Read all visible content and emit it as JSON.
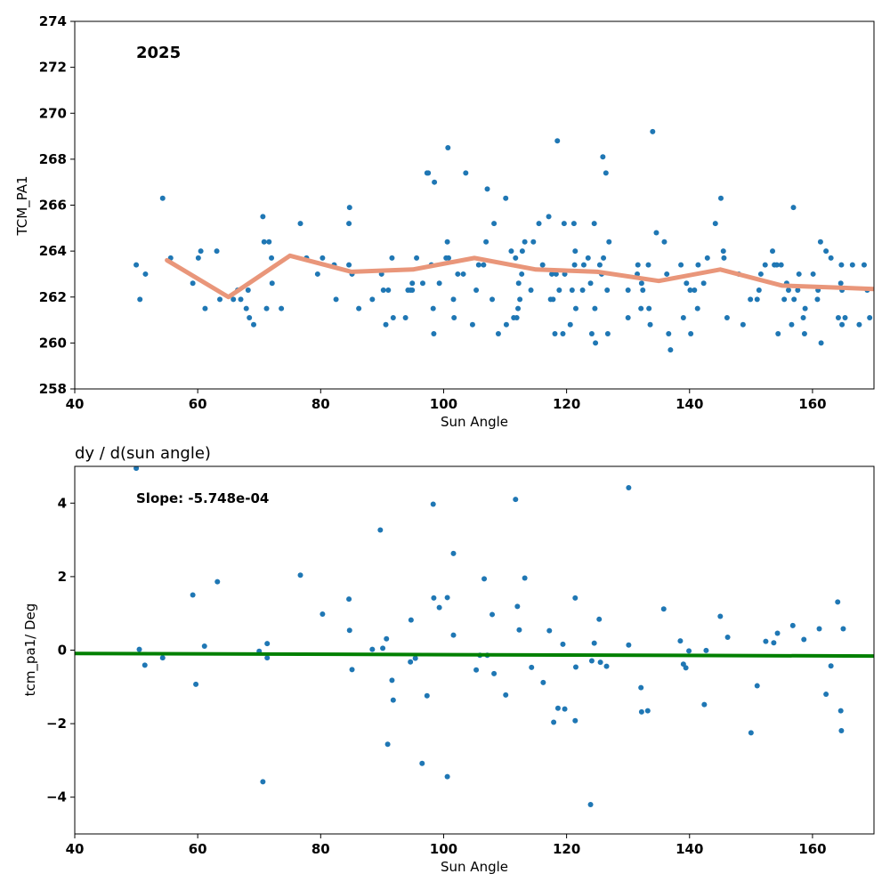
{
  "chart_data": [
    {
      "type": "scatter",
      "title": "",
      "annotation": "2025",
      "xlabel": "Sun Angle",
      "ylabel": "TCM_PA1",
      "xlim": [
        40,
        170
      ],
      "ylim": [
        258,
        274
      ],
      "xticks": [
        40,
        60,
        80,
        100,
        120,
        140,
        160
      ],
      "yticks": [
        258,
        260,
        262,
        264,
        266,
        268,
        270,
        272,
        274
      ],
      "grid": false,
      "colors": {
        "points": "#1f77b4",
        "trend": "#e9967a"
      },
      "points": [
        [
          50.0,
          263.4
        ],
        [
          50.6,
          261.9
        ],
        [
          51.5,
          263.0
        ],
        [
          54.3,
          266.3
        ],
        [
          55.6,
          263.7
        ],
        [
          59.2,
          262.6
        ],
        [
          60.1,
          263.7
        ],
        [
          60.5,
          264.0
        ],
        [
          61.2,
          261.5
        ],
        [
          63.1,
          264.0
        ],
        [
          63.6,
          261.9
        ],
        [
          65.8,
          261.9
        ],
        [
          66.5,
          262.3
        ],
        [
          67.0,
          261.9
        ],
        [
          67.9,
          261.5
        ],
        [
          68.2,
          262.3
        ],
        [
          68.4,
          261.1
        ],
        [
          69.1,
          260.8
        ],
        [
          70.6,
          265.5
        ],
        [
          70.8,
          264.4
        ],
        [
          71.2,
          261.5
        ],
        [
          71.6,
          264.4
        ],
        [
          72.0,
          263.7
        ],
        [
          72.1,
          262.6
        ],
        [
          73.6,
          261.5
        ],
        [
          76.7,
          265.2
        ],
        [
          77.7,
          263.7
        ],
        [
          79.5,
          263.0
        ],
        [
          80.3,
          263.7
        ],
        [
          82.2,
          263.4
        ],
        [
          82.5,
          261.9
        ],
        [
          84.6,
          263.4
        ],
        [
          84.6,
          265.2
        ],
        [
          84.7,
          265.9
        ],
        [
          85.1,
          263.0
        ],
        [
          86.2,
          261.5
        ],
        [
          88.4,
          261.9
        ],
        [
          89.9,
          263.0
        ],
        [
          90.2,
          262.3
        ],
        [
          90.6,
          260.8
        ],
        [
          91.0,
          262.3
        ],
        [
          91.6,
          263.7
        ],
        [
          91.8,
          261.1
        ],
        [
          93.8,
          261.1
        ],
        [
          94.2,
          262.3
        ],
        [
          94.6,
          262.3
        ],
        [
          94.9,
          262.6
        ],
        [
          94.9,
          262.3
        ],
        [
          95.6,
          263.7
        ],
        [
          96.6,
          262.6
        ],
        [
          97.3,
          267.4
        ],
        [
          97.5,
          267.4
        ],
        [
          98.0,
          263.4
        ],
        [
          98.3,
          261.5
        ],
        [
          98.4,
          260.4
        ],
        [
          98.5,
          267.0
        ],
        [
          99.3,
          262.6
        ],
        [
          100.4,
          263.7
        ],
        [
          100.6,
          264.4
        ],
        [
          100.7,
          268.5
        ],
        [
          100.8,
          263.7
        ],
        [
          101.6,
          261.9
        ],
        [
          101.7,
          261.1
        ],
        [
          102.3,
          263.0
        ],
        [
          103.2,
          263.0
        ],
        [
          103.6,
          267.4
        ],
        [
          104.7,
          260.8
        ],
        [
          105.3,
          262.3
        ],
        [
          105.7,
          263.4
        ],
        [
          106.5,
          263.4
        ],
        [
          106.9,
          264.4
        ],
        [
          107.1,
          266.7
        ],
        [
          107.9,
          261.9
        ],
        [
          108.2,
          265.2
        ],
        [
          108.9,
          260.4
        ],
        [
          110.1,
          266.3
        ],
        [
          110.2,
          260.8
        ],
        [
          111.0,
          264.0
        ],
        [
          111.4,
          261.1
        ],
        [
          111.7,
          263.7
        ],
        [
          111.9,
          261.1
        ],
        [
          112.1,
          261.5
        ],
        [
          112.2,
          262.6
        ],
        [
          112.4,
          261.9
        ],
        [
          112.7,
          263.0
        ],
        [
          112.8,
          264.0
        ],
        [
          113.2,
          264.4
        ],
        [
          114.2,
          262.3
        ],
        [
          114.6,
          264.4
        ],
        [
          115.5,
          265.2
        ],
        [
          116.1,
          263.4
        ],
        [
          117.1,
          265.5
        ],
        [
          117.4,
          261.9
        ],
        [
          117.6,
          263.0
        ],
        [
          117.8,
          261.9
        ],
        [
          118.1,
          260.4
        ],
        [
          118.3,
          263.0
        ],
        [
          118.5,
          268.8
        ],
        [
          118.8,
          262.3
        ],
        [
          119.4,
          260.4
        ],
        [
          119.6,
          265.2
        ],
        [
          119.7,
          263.0
        ],
        [
          120.6,
          260.8
        ],
        [
          120.9,
          262.3
        ],
        [
          121.2,
          265.2
        ],
        [
          121.3,
          263.4
        ],
        [
          121.4,
          264.0
        ],
        [
          121.5,
          261.5
        ],
        [
          122.6,
          262.3
        ],
        [
          122.8,
          263.4
        ],
        [
          123.5,
          263.7
        ],
        [
          123.9,
          262.6
        ],
        [
          124.1,
          260.4
        ],
        [
          124.5,
          265.2
        ],
        [
          124.6,
          261.5
        ],
        [
          124.7,
          260.0
        ],
        [
          125.4,
          263.4
        ],
        [
          125.7,
          263.0
        ],
        [
          125.9,
          268.1
        ],
        [
          126.0,
          263.7
        ],
        [
          126.4,
          267.4
        ],
        [
          126.6,
          262.3
        ],
        [
          126.7,
          260.4
        ],
        [
          126.9,
          264.4
        ],
        [
          130.0,
          262.3
        ],
        [
          130.0,
          261.1
        ],
        [
          131.5,
          263.0
        ],
        [
          131.6,
          263.4
        ],
        [
          132.1,
          261.5
        ],
        [
          132.2,
          262.6
        ],
        [
          132.4,
          262.3
        ],
        [
          133.3,
          263.4
        ],
        [
          133.4,
          261.5
        ],
        [
          133.6,
          260.8
        ],
        [
          134.0,
          269.2
        ],
        [
          134.6,
          264.8
        ],
        [
          135.9,
          264.4
        ],
        [
          136.3,
          263.0
        ],
        [
          136.6,
          260.4
        ],
        [
          136.9,
          259.7
        ],
        [
          138.6,
          263.4
        ],
        [
          139.0,
          261.1
        ],
        [
          139.5,
          262.6
        ],
        [
          140.1,
          262.3
        ],
        [
          140.2,
          260.4
        ],
        [
          140.8,
          262.3
        ],
        [
          141.3,
          261.5
        ],
        [
          141.4,
          263.4
        ],
        [
          142.3,
          262.6
        ],
        [
          142.9,
          263.7
        ],
        [
          144.2,
          265.2
        ],
        [
          145.1,
          266.3
        ],
        [
          145.5,
          264.0
        ],
        [
          145.6,
          263.7
        ],
        [
          146.1,
          261.1
        ],
        [
          148.0,
          263.0
        ],
        [
          148.7,
          260.8
        ],
        [
          149.9,
          261.9
        ],
        [
          151.0,
          261.9
        ],
        [
          151.3,
          262.3
        ],
        [
          151.6,
          263.0
        ],
        [
          152.3,
          263.4
        ],
        [
          153.5,
          264.0
        ],
        [
          153.8,
          263.4
        ],
        [
          154.2,
          263.4
        ],
        [
          154.4,
          260.4
        ],
        [
          154.9,
          263.4
        ],
        [
          155.4,
          261.9
        ],
        [
          155.8,
          262.6
        ],
        [
          156.1,
          262.3
        ],
        [
          156.6,
          260.8
        ],
        [
          156.9,
          265.9
        ],
        [
          157.0,
          261.9
        ],
        [
          157.6,
          262.3
        ],
        [
          157.8,
          263.0
        ],
        [
          158.5,
          261.1
        ],
        [
          158.7,
          260.4
        ],
        [
          158.8,
          261.5
        ],
        [
          160.1,
          263.0
        ],
        [
          160.8,
          261.9
        ],
        [
          160.9,
          262.3
        ],
        [
          161.3,
          264.4
        ],
        [
          161.4,
          260.0
        ],
        [
          162.2,
          264.0
        ],
        [
          163.0,
          263.7
        ],
        [
          164.2,
          261.1
        ],
        [
          164.6,
          262.6
        ],
        [
          164.7,
          263.4
        ],
        [
          164.8,
          260.8
        ],
        [
          164.8,
          262.3
        ],
        [
          165.3,
          261.1
        ],
        [
          166.5,
          263.4
        ],
        [
          167.6,
          260.8
        ],
        [
          168.4,
          263.4
        ],
        [
          168.9,
          262.3
        ],
        [
          169.3,
          261.1
        ]
      ],
      "trend_line": {
        "x": [
          55.0,
          65.0,
          75.0,
          85.0,
          95.0,
          105.0,
          115.0,
          125.0,
          135.0,
          145.0,
          155.0,
          165.0,
          175.0
        ],
        "y": [
          263.6,
          262.0,
          263.8,
          263.1,
          263.2,
          263.7,
          263.2,
          263.1,
          262.7,
          263.2,
          262.5,
          262.4,
          262.3
        ]
      }
    },
    {
      "type": "scatter",
      "title": "dy / d(sun angle)",
      "annotation": "Slope: -5.748e-04",
      "xlabel": "Sun Angle",
      "ylabel": "tcm_pa1/ Deg",
      "xlim": [
        40,
        170
      ],
      "ylim": [
        -5,
        5
      ],
      "xticks": [
        40,
        60,
        80,
        100,
        120,
        140,
        160
      ],
      "yticks": [
        -4,
        -2,
        0,
        2,
        4
      ],
      "ytick_labels": [
        "−4",
        "−2",
        "0",
        "2",
        "4"
      ],
      "grid": false,
      "colors": {
        "points": "#1f77b4",
        "fit": "#008000"
      },
      "points": [
        [
          50.0,
          4.95
        ],
        [
          50.5,
          0.02
        ],
        [
          51.4,
          -0.41
        ],
        [
          54.3,
          -0.21
        ],
        [
          59.2,
          1.5
        ],
        [
          59.7,
          -0.93
        ],
        [
          61.1,
          0.11
        ],
        [
          63.2,
          1.86
        ],
        [
          70.0,
          -0.03
        ],
        [
          70.6,
          -3.58
        ],
        [
          71.3,
          0.18
        ],
        [
          71.3,
          -0.21
        ],
        [
          76.7,
          2.04
        ],
        [
          80.3,
          0.98
        ],
        [
          84.6,
          1.39
        ],
        [
          84.7,
          0.54
        ],
        [
          85.1,
          -0.53
        ],
        [
          88.4,
          0.02
        ],
        [
          89.7,
          3.27
        ],
        [
          90.1,
          0.05
        ],
        [
          90.7,
          0.31
        ],
        [
          90.9,
          -2.56
        ],
        [
          91.6,
          -0.82
        ],
        [
          91.8,
          -1.36
        ],
        [
          94.6,
          -0.32
        ],
        [
          94.7,
          0.82
        ],
        [
          95.4,
          -0.22
        ],
        [
          96.5,
          -3.08
        ],
        [
          97.3,
          -1.24
        ],
        [
          98.3,
          3.97
        ],
        [
          98.4,
          1.42
        ],
        [
          99.3,
          1.16
        ],
        [
          100.6,
          -3.44
        ],
        [
          100.6,
          1.43
        ],
        [
          101.6,
          0.41
        ],
        [
          101.6,
          2.63
        ],
        [
          105.3,
          -0.54
        ],
        [
          105.9,
          -0.14
        ],
        [
          106.6,
          1.94
        ],
        [
          107.1,
          -0.14
        ],
        [
          107.9,
          0.97
        ],
        [
          108.2,
          -0.64
        ],
        [
          110.1,
          -1.22
        ],
        [
          111.7,
          4.1
        ],
        [
          112.0,
          1.19
        ],
        [
          112.3,
          0.55
        ],
        [
          113.2,
          1.96
        ],
        [
          114.3,
          -0.47
        ],
        [
          116.2,
          -0.88
        ],
        [
          117.2,
          0.53
        ],
        [
          117.9,
          -1.96
        ],
        [
          118.6,
          -1.58
        ],
        [
          119.4,
          0.16
        ],
        [
          119.7,
          -1.6
        ],
        [
          121.4,
          1.42
        ],
        [
          121.4,
          -1.92
        ],
        [
          121.5,
          -0.46
        ],
        [
          123.9,
          -4.2
        ],
        [
          124.1,
          -0.29
        ],
        [
          124.5,
          0.19
        ],
        [
          125.3,
          0.84
        ],
        [
          125.5,
          -0.33
        ],
        [
          126.5,
          -0.44
        ],
        [
          130.1,
          0.14
        ],
        [
          130.1,
          4.42
        ],
        [
          132.1,
          -1.02
        ],
        [
          132.2,
          -1.68
        ],
        [
          133.2,
          -1.65
        ],
        [
          135.8,
          1.12
        ],
        [
          138.5,
          0.25
        ],
        [
          139.0,
          -0.38
        ],
        [
          139.4,
          -0.48
        ],
        [
          139.9,
          -0.02
        ],
        [
          142.4,
          -1.48
        ],
        [
          142.7,
          -0.01
        ],
        [
          145.0,
          0.92
        ],
        [
          146.2,
          0.35
        ],
        [
          150.0,
          -2.25
        ],
        [
          151.0,
          -0.97
        ],
        [
          152.4,
          0.24
        ],
        [
          153.7,
          0.2
        ],
        [
          154.3,
          0.46
        ],
        [
          156.8,
          0.67
        ],
        [
          158.6,
          0.29
        ],
        [
          161.1,
          0.58
        ],
        [
          162.2,
          -1.2
        ],
        [
          163.0,
          -0.43
        ],
        [
          164.1,
          1.31
        ],
        [
          164.6,
          -1.65
        ],
        [
          164.7,
          -2.19
        ],
        [
          165.0,
          0.58
        ]
      ],
      "fit_line": {
        "x": [
          40,
          170
        ],
        "y": [
          -0.09,
          -0.16
        ]
      }
    }
  ]
}
